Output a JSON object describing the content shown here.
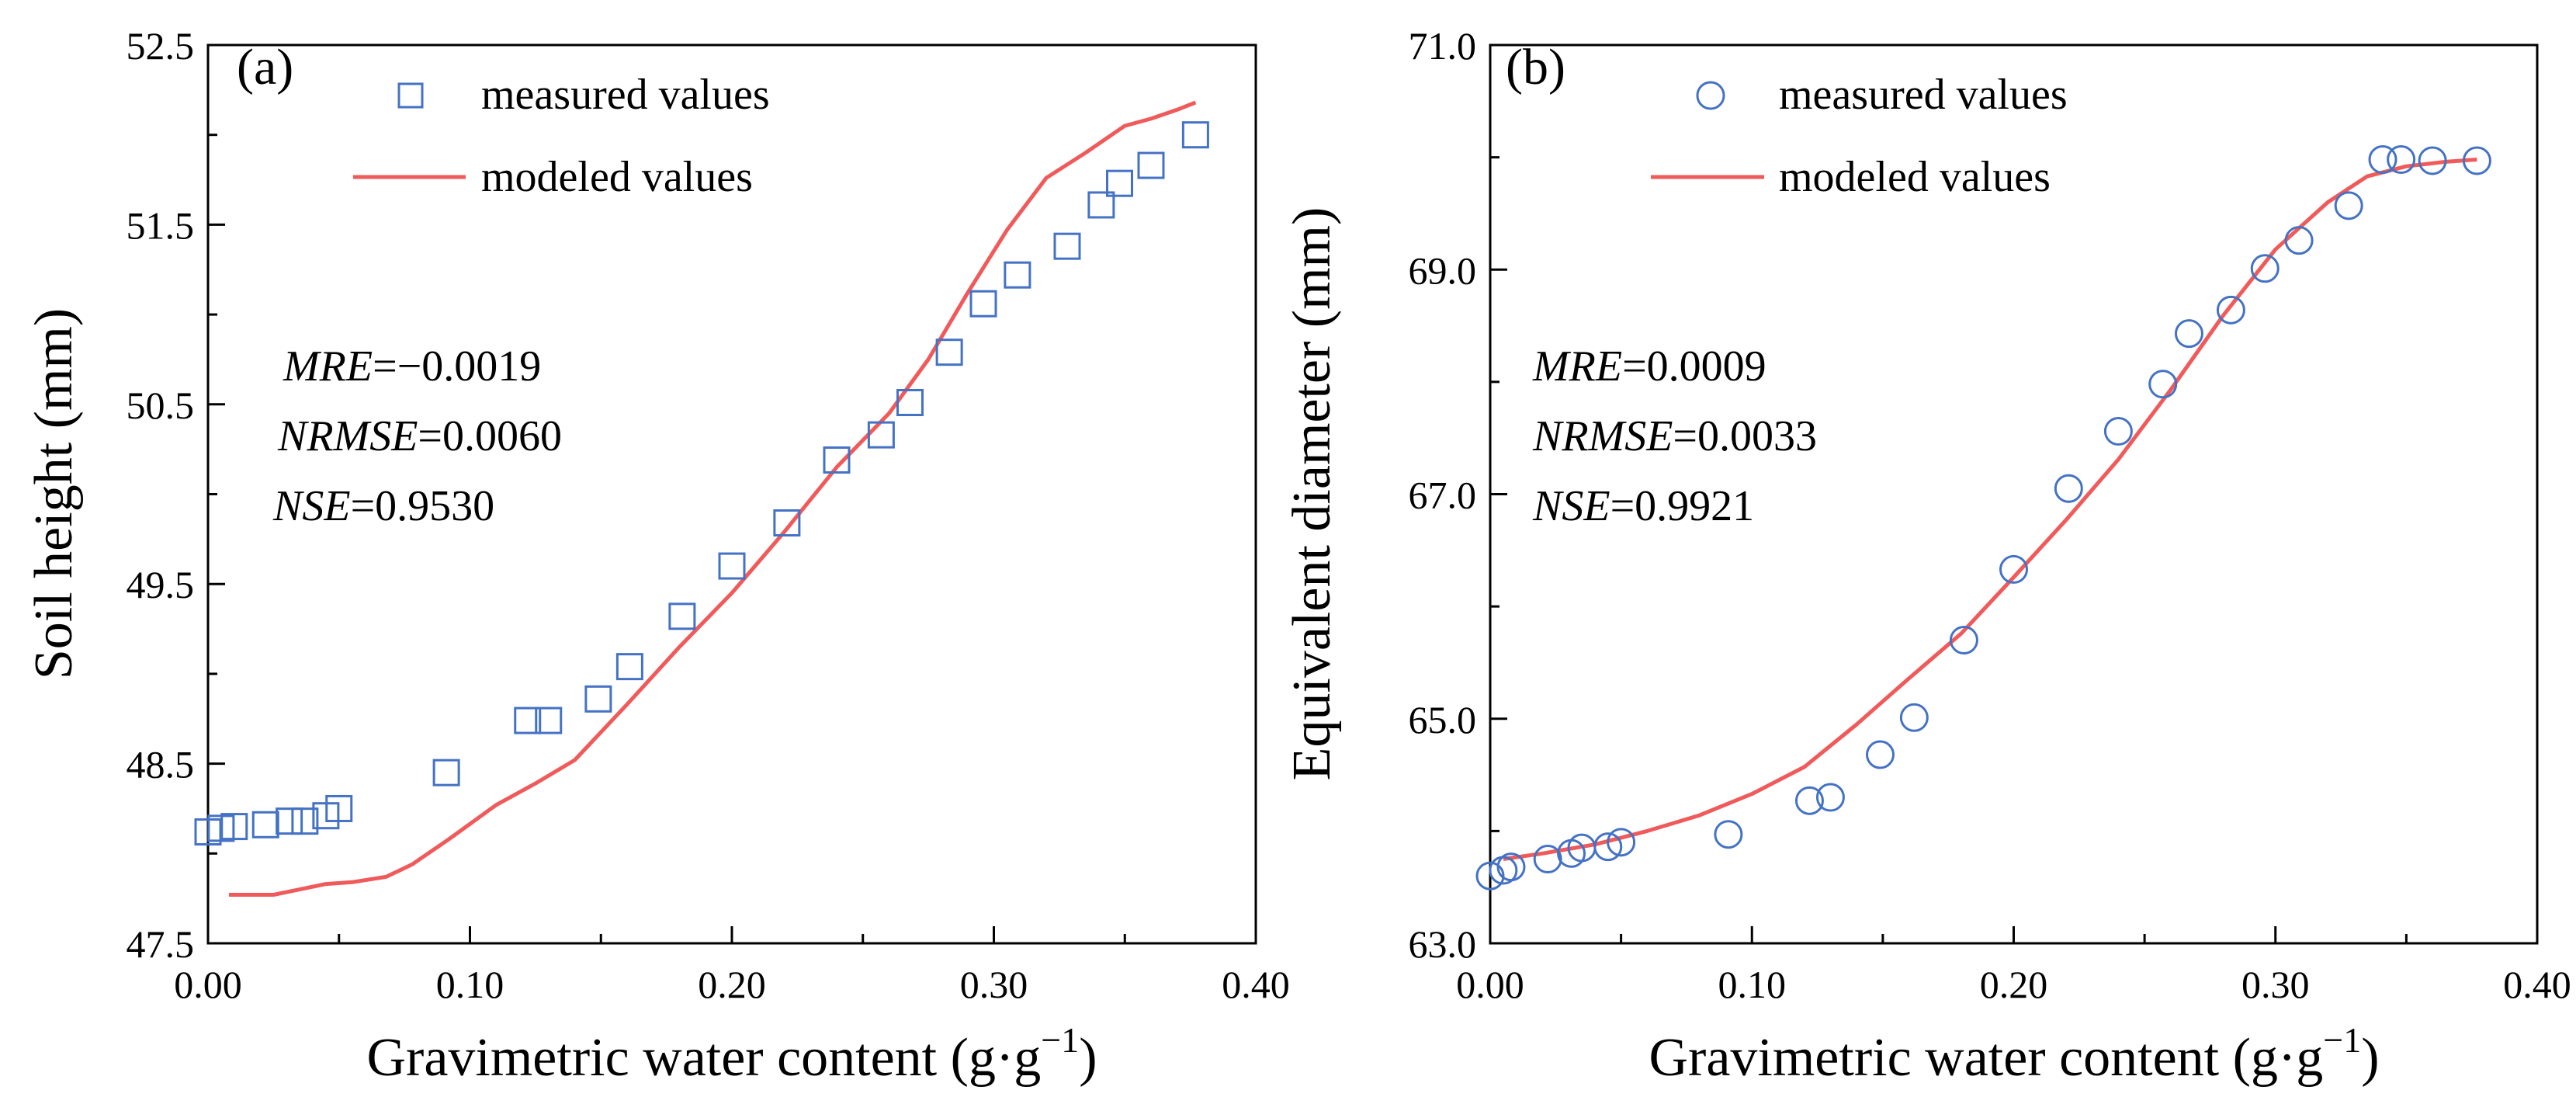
{
  "chart_data": [
    {
      "type": "scatter+line",
      "panel_label": "(a)",
      "xlabel": "Gravimetric water content  (g·g",
      "xlabel_sup": "−1",
      "xlabel_end": ")",
      "ylabel": "Soil height (mm)",
      "xlim": [
        0,
        0.4
      ],
      "ylim": [
        47.5,
        52.5
      ],
      "xticks": [
        "0.00",
        "0.10",
        "0.20",
        "0.30",
        "0.40"
      ],
      "xtick_values": [
        0,
        0.1,
        0.2,
        0.3,
        0.4
      ],
      "yticks": [
        "47.5",
        "48.5",
        "49.5",
        "50.5",
        "51.5",
        "52.5"
      ],
      "ytick_values": [
        47.5,
        48.5,
        49.5,
        50.5,
        51.5,
        52.5
      ],
      "legend": {
        "measured": "measured values",
        "modeled": "modeled values"
      },
      "stats": [
        {
          "name": "MRE",
          "value": "=−0.0019"
        },
        {
          "name": "NRMSE",
          "value": "=0.0060"
        },
        {
          "name": "NSE",
          "value": "=0.9530"
        }
      ],
      "series": [
        {
          "name": "measured values",
          "marker": "square",
          "x": [
            0.0,
            0.005,
            0.01,
            0.022,
            0.031,
            0.037,
            0.045,
            0.05,
            0.091,
            0.122,
            0.13,
            0.149,
            0.161,
            0.181,
            0.2,
            0.221,
            0.24,
            0.257,
            0.268,
            0.283,
            0.296,
            0.309,
            0.328,
            0.341,
            0.348,
            0.36,
            0.377
          ],
          "y": [
            48.12,
            48.14,
            48.15,
            48.16,
            48.18,
            48.18,
            48.21,
            48.25,
            48.45,
            48.74,
            48.74,
            48.86,
            49.04,
            49.32,
            49.6,
            49.84,
            50.19,
            50.33,
            50.51,
            50.79,
            51.06,
            51.22,
            51.38,
            51.61,
            51.73,
            51.83,
            52.0
          ]
        },
        {
          "name": "modeled values",
          "marker": "line",
          "x": [
            0.008,
            0.015,
            0.025,
            0.035,
            0.045,
            0.055,
            0.068,
            0.078,
            0.092,
            0.11,
            0.125,
            0.14,
            0.16,
            0.18,
            0.2,
            0.22,
            0.24,
            0.26,
            0.275,
            0.29,
            0.305,
            0.32,
            0.335,
            0.35,
            0.36,
            0.37,
            0.377
          ],
          "y": [
            47.77,
            47.77,
            47.77,
            47.8,
            47.83,
            47.84,
            47.87,
            47.94,
            48.08,
            48.27,
            48.39,
            48.52,
            48.83,
            49.15,
            49.45,
            49.79,
            50.15,
            50.45,
            50.75,
            51.12,
            51.47,
            51.76,
            51.9,
            52.05,
            52.09,
            52.14,
            52.18
          ]
        }
      ]
    },
    {
      "type": "scatter+line",
      "panel_label": "(b)",
      "xlabel": "Gravimetric water content (g·g",
      "xlabel_sup": "−1",
      "xlabel_end": ")",
      "ylabel": "Equivalent diameter (mm)",
      "xlim": [
        0,
        0.4
      ],
      "ylim": [
        63.0,
        71.0
      ],
      "xticks": [
        "0.00",
        "0.10",
        "0.20",
        "0.30",
        "0.40"
      ],
      "xtick_values": [
        0,
        0.1,
        0.2,
        0.3,
        0.4
      ],
      "yticks": [
        "63.0",
        "65.0",
        "67.0",
        "69.0",
        "71.0"
      ],
      "ytick_values": [
        63.0,
        65.0,
        67.0,
        69.0,
        71.0
      ],
      "legend": {
        "measured": "measured values",
        "modeled": "modeled values"
      },
      "stats": [
        {
          "name": "MRE",
          "value": "=0.0009"
        },
        {
          "name": "NRMSE",
          "value": "=0.0033"
        },
        {
          "name": "NSE",
          "value": "=0.9921"
        }
      ],
      "series": [
        {
          "name": "measured values",
          "marker": "circle",
          "x": [
            0.0,
            0.005,
            0.008,
            0.022,
            0.031,
            0.035,
            0.045,
            0.05,
            0.091,
            0.122,
            0.13,
            0.149,
            0.162,
            0.181,
            0.2,
            0.221,
            0.24,
            0.257,
            0.267,
            0.283,
            0.296,
            0.309,
            0.328,
            0.341,
            0.348,
            0.36,
            0.377
          ],
          "y": [
            63.6,
            63.65,
            63.68,
            63.75,
            63.8,
            63.85,
            63.86,
            63.9,
            63.97,
            64.27,
            64.3,
            64.68,
            65.01,
            65.7,
            66.33,
            67.05,
            67.56,
            67.98,
            68.43,
            68.64,
            69.01,
            69.26,
            69.57,
            69.98,
            69.98,
            69.97,
            69.97
          ]
        },
        {
          "name": "modeled values",
          "marker": "line",
          "x": [
            0.005,
            0.02,
            0.04,
            0.06,
            0.08,
            0.1,
            0.12,
            0.14,
            0.16,
            0.18,
            0.2,
            0.22,
            0.24,
            0.26,
            0.28,
            0.3,
            0.32,
            0.335,
            0.35,
            0.365,
            0.377
          ],
          "y": [
            63.75,
            63.8,
            63.88,
            64.0,
            64.14,
            64.33,
            64.57,
            64.95,
            65.36,
            65.76,
            66.26,
            66.77,
            67.31,
            67.93,
            68.59,
            69.18,
            69.6,
            69.83,
            69.92,
            69.96,
            69.98
          ]
        }
      ]
    }
  ]
}
